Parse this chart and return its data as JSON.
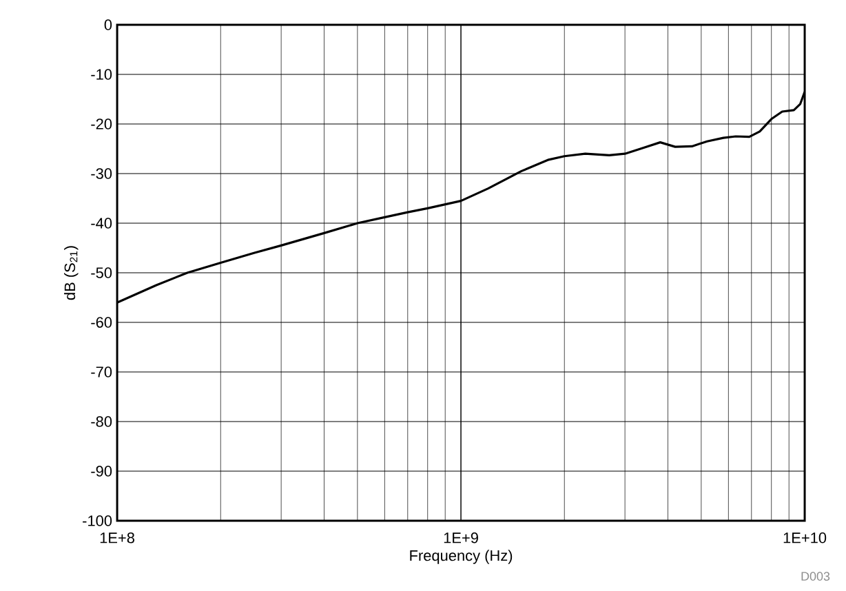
{
  "chart_data": {
    "type": "line",
    "xlabel": "Frequency (Hz)",
    "ylabel": "dB (S$_{21}$)",
    "log": "x",
    "grid": true,
    "marker": "none",
    "line_style": "solid",
    "xlim": [
      100000000,
      10000000000
    ],
    "xticks": [
      {
        "value": 100000000,
        "label": "1E+8"
      },
      {
        "value": 1000000000,
        "label": "1E+9"
      },
      {
        "value": 10000000000,
        "label": "1E+10"
      }
    ],
    "ylim": [
      -100,
      0
    ],
    "yticks": [
      -100,
      -90,
      -80,
      -70,
      -60,
      -50,
      -40,
      -30,
      -20,
      -10,
      0
    ],
    "series": [
      {
        "color": "#000000",
        "x": [
          100000000,
          130000000,
          160000000,
          200000000,
          250000000,
          300000000,
          400000000,
          500000000,
          600000000,
          700000000,
          800000000,
          1000000000,
          1200000000,
          1500000000,
          1800000000,
          2000000000,
          2300000000,
          2700000000,
          3000000000,
          3400000000,
          3800000000,
          4200000000,
          4700000000,
          5200000000,
          5800000000,
          6300000000,
          6900000000,
          7400000000,
          8000000000,
          8600000000,
          9300000000,
          9700000000,
          10000000000
        ],
        "values": [
          -56,
          -52.5,
          -50,
          -48,
          -46,
          -44.5,
          -42,
          -40,
          -38.8,
          -37.8,
          -37,
          -35.5,
          -33,
          -29.5,
          -27.2,
          -26.5,
          -26,
          -26.3,
          -26,
          -24.8,
          -23.7,
          -24.6,
          -24.5,
          -23.5,
          -22.8,
          -22.5,
          -22.6,
          -21.5,
          -19,
          -17.5,
          -17.2,
          -16,
          -13.5
        ]
      }
    ],
    "annotations": [
      "D003"
    ]
  }
}
